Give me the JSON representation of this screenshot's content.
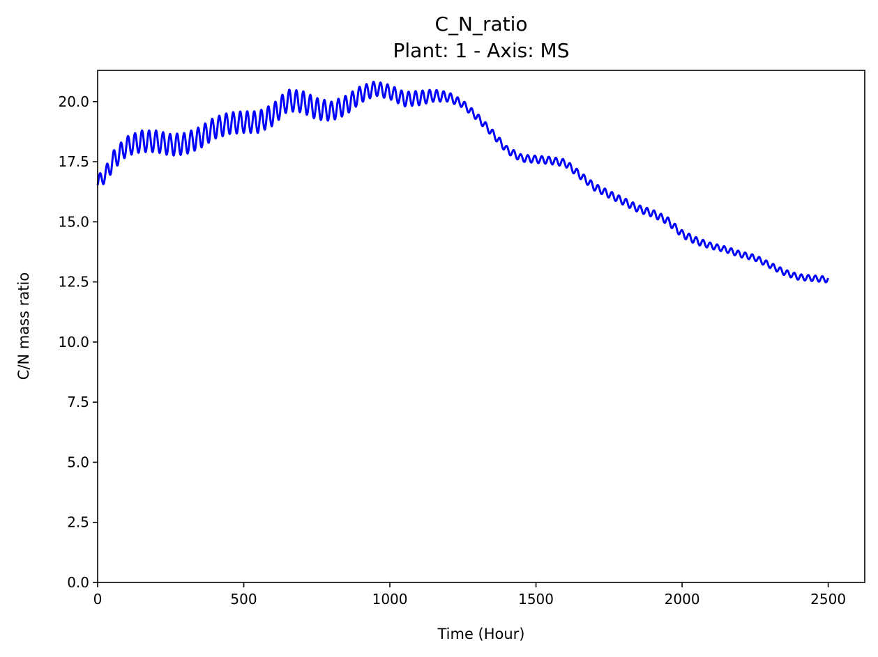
{
  "chart_data": {
    "type": "line",
    "title": "C_N_ratio",
    "subtitle": "Plant: 1 - Axis: MS",
    "xlabel": "Time (Hour)",
    "ylabel": "C/N mass ratio",
    "xlim": [
      0,
      2625
    ],
    "ylim": [
      0,
      21.3
    ],
    "xticks": [
      0,
      500,
      1000,
      1500,
      2000,
      2500
    ],
    "xtick_labels": [
      "0",
      "500",
      "1000",
      "1500",
      "2000",
      "2500"
    ],
    "yticks": [
      0,
      2.5,
      5,
      7.5,
      10,
      12.5,
      15,
      17.5,
      20
    ],
    "ytick_labels": [
      "0.0",
      "2.5",
      "5.0",
      "7.5",
      "10.0",
      "12.5",
      "15.0",
      "17.5",
      "20.0"
    ],
    "grid": false,
    "line_color": "#0000ff",
    "oscillation": {
      "period_hours": 24
    },
    "series": [
      {
        "x": [
          0,
          30,
          50,
          80,
          100,
          150,
          200,
          250,
          300,
          350,
          400,
          450,
          500,
          550,
          600,
          650,
          700,
          750,
          800,
          850,
          900,
          950,
          1000,
          1050,
          1100,
          1150,
          1200,
          1250,
          1300,
          1350,
          1400,
          1450,
          1500,
          1550,
          1600,
          1650,
          1700,
          1750,
          1800,
          1850,
          1900,
          1950,
          2000,
          2050,
          2100,
          2150,
          2200,
          2250,
          2300,
          2350,
          2400,
          2450,
          2500
        ],
        "y": [
          16.65,
          17.0,
          17.5,
          17.9,
          18.15,
          18.35,
          18.35,
          18.2,
          18.25,
          18.5,
          18.9,
          19.1,
          19.15,
          19.15,
          19.45,
          20.05,
          20.0,
          19.7,
          19.6,
          19.85,
          20.3,
          20.55,
          20.4,
          20.1,
          20.15,
          20.25,
          20.2,
          19.9,
          19.35,
          18.7,
          18.0,
          17.65,
          17.6,
          17.55,
          17.45,
          16.95,
          16.45,
          16.15,
          15.85,
          15.55,
          15.35,
          15.05,
          14.5,
          14.2,
          14.0,
          13.85,
          13.65,
          13.5,
          13.2,
          12.9,
          12.7,
          12.65,
          12.6
        ],
        "amplitude": [
          0.25,
          0.35,
          0.4,
          0.4,
          0.4,
          0.45,
          0.45,
          0.45,
          0.45,
          0.45,
          0.45,
          0.45,
          0.45,
          0.45,
          0.45,
          0.45,
          0.45,
          0.45,
          0.4,
          0.4,
          0.35,
          0.3,
          0.3,
          0.3,
          0.3,
          0.25,
          0.2,
          0.15,
          0.15,
          0.15,
          0.15,
          0.15,
          0.15,
          0.15,
          0.15,
          0.15,
          0.15,
          0.15,
          0.15,
          0.15,
          0.15,
          0.15,
          0.15,
          0.15,
          0.12,
          0.12,
          0.12,
          0.12,
          0.12,
          0.12,
          0.12,
          0.12,
          0.12
        ]
      }
    ]
  }
}
